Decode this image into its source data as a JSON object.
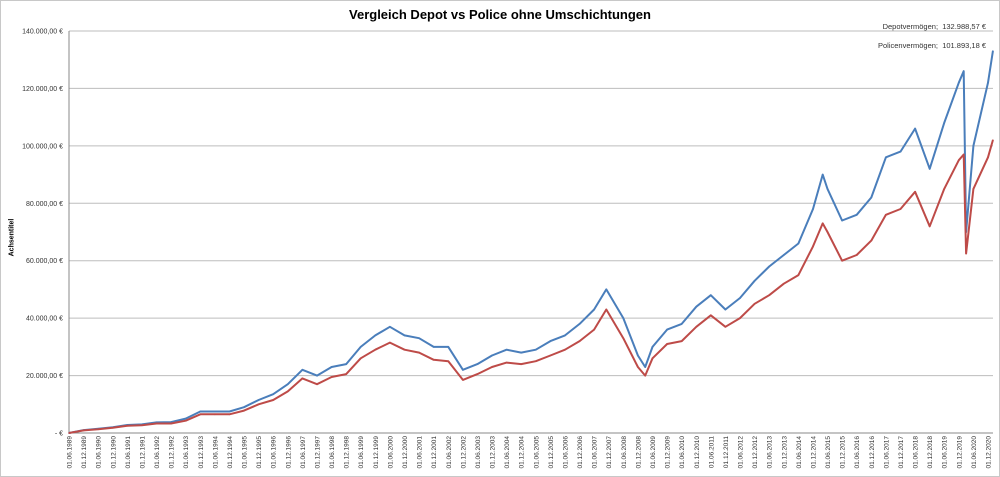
{
  "chart_data": {
    "type": "line",
    "title": "Vergleich Depot vs Police  ohne Umschichtungen",
    "ylabel": "Achsentitel",
    "xlabel": "",
    "ylim": [
      0,
      140000
    ],
    "grid": true,
    "y_ticks": [
      "- €",
      "20.000,00 €",
      "40.000,00 €",
      "60.000,00 €",
      "80.000,00 €",
      "100.000,00 €",
      "120.000,00 €",
      "140.000,00 €"
    ],
    "x_ticks": [],
    "annotations": [
      {
        "label": "Depotvermögen;",
        "value": "132.988,57 €"
      },
      {
        "label": "Policenvermögen;",
        "value": "101.893,18 €"
      }
    ],
    "colors": {
      "depot": "#4a7ebb",
      "police": "#be4b48"
    },
    "x": [
      "1989-06",
      "1989-12",
      "1990-06",
      "1990-12",
      "1991-06",
      "1991-12",
      "1992-06",
      "1992-12",
      "1993-06",
      "1993-12",
      "1994-06",
      "1994-12",
      "1995-06",
      "1995-12",
      "1996-06",
      "1996-12",
      "1997-06",
      "1997-12",
      "1998-06",
      "1998-12",
      "1999-06",
      "1999-12",
      "2000-06",
      "2000-12",
      "2001-06",
      "2001-12",
      "2002-06",
      "2002-12",
      "2003-06",
      "2003-12",
      "2004-06",
      "2004-12",
      "2005-06",
      "2005-12",
      "2006-06",
      "2006-12",
      "2007-06",
      "2007-11",
      "2008-06",
      "2008-12",
      "2009-03",
      "2009-06",
      "2009-12",
      "2010-06",
      "2010-12",
      "2011-06",
      "2011-12",
      "2012-06",
      "2012-12",
      "2013-06",
      "2013-12",
      "2014-06",
      "2014-12",
      "2015-04",
      "2015-06",
      "2015-12",
      "2016-06",
      "2016-12",
      "2017-06",
      "2017-12",
      "2018-06",
      "2018-12",
      "2019-06",
      "2019-12",
      "2020-02",
      "2020-03",
      "2020-06",
      "2020-12",
      "2021-02"
    ],
    "series": [
      {
        "key": "depot",
        "values": [
          0,
          1000,
          1500,
          2000,
          2800,
          3000,
          3700,
          3800,
          5000,
          7500,
          7500,
          7500,
          9000,
          11500,
          13500,
          17000,
          22000,
          20000,
          23000,
          24000,
          30000,
          34000,
          37000,
          34000,
          33000,
          30000,
          30000,
          22000,
          24000,
          27000,
          29000,
          28000,
          29000,
          32000,
          34000,
          38000,
          43000,
          50000,
          40000,
          27000,
          23000,
          30000,
          36000,
          38000,
          44000,
          48000,
          43000,
          47000,
          53000,
          58000,
          62000,
          66000,
          78000,
          90000,
          85000,
          74000,
          76000,
          82000,
          96000,
          98000,
          106000,
          92000,
          108000,
          122000,
          126000,
          70000,
          100000,
          122000,
          133000
        ]
      },
      {
        "key": "police",
        "values": [
          0,
          900,
          1300,
          1800,
          2500,
          2700,
          3300,
          3300,
          4300,
          6500,
          6500,
          6500,
          7800,
          10000,
          11500,
          14500,
          19000,
          17000,
          19500,
          20500,
          26000,
          29000,
          31500,
          29000,
          28000,
          25500,
          25000,
          18500,
          20500,
          23000,
          24500,
          24000,
          25000,
          27000,
          29000,
          32000,
          36000,
          43000,
          33000,
          23000,
          20000,
          26000,
          31000,
          32000,
          37000,
          41000,
          37000,
          40000,
          45000,
          48000,
          52000,
          55000,
          65000,
          73000,
          70000,
          60000,
          62000,
          67000,
          76000,
          78000,
          84000,
          72000,
          85000,
          95000,
          97000,
          62500,
          85000,
          96000,
          102000
        ]
      }
    ]
  }
}
